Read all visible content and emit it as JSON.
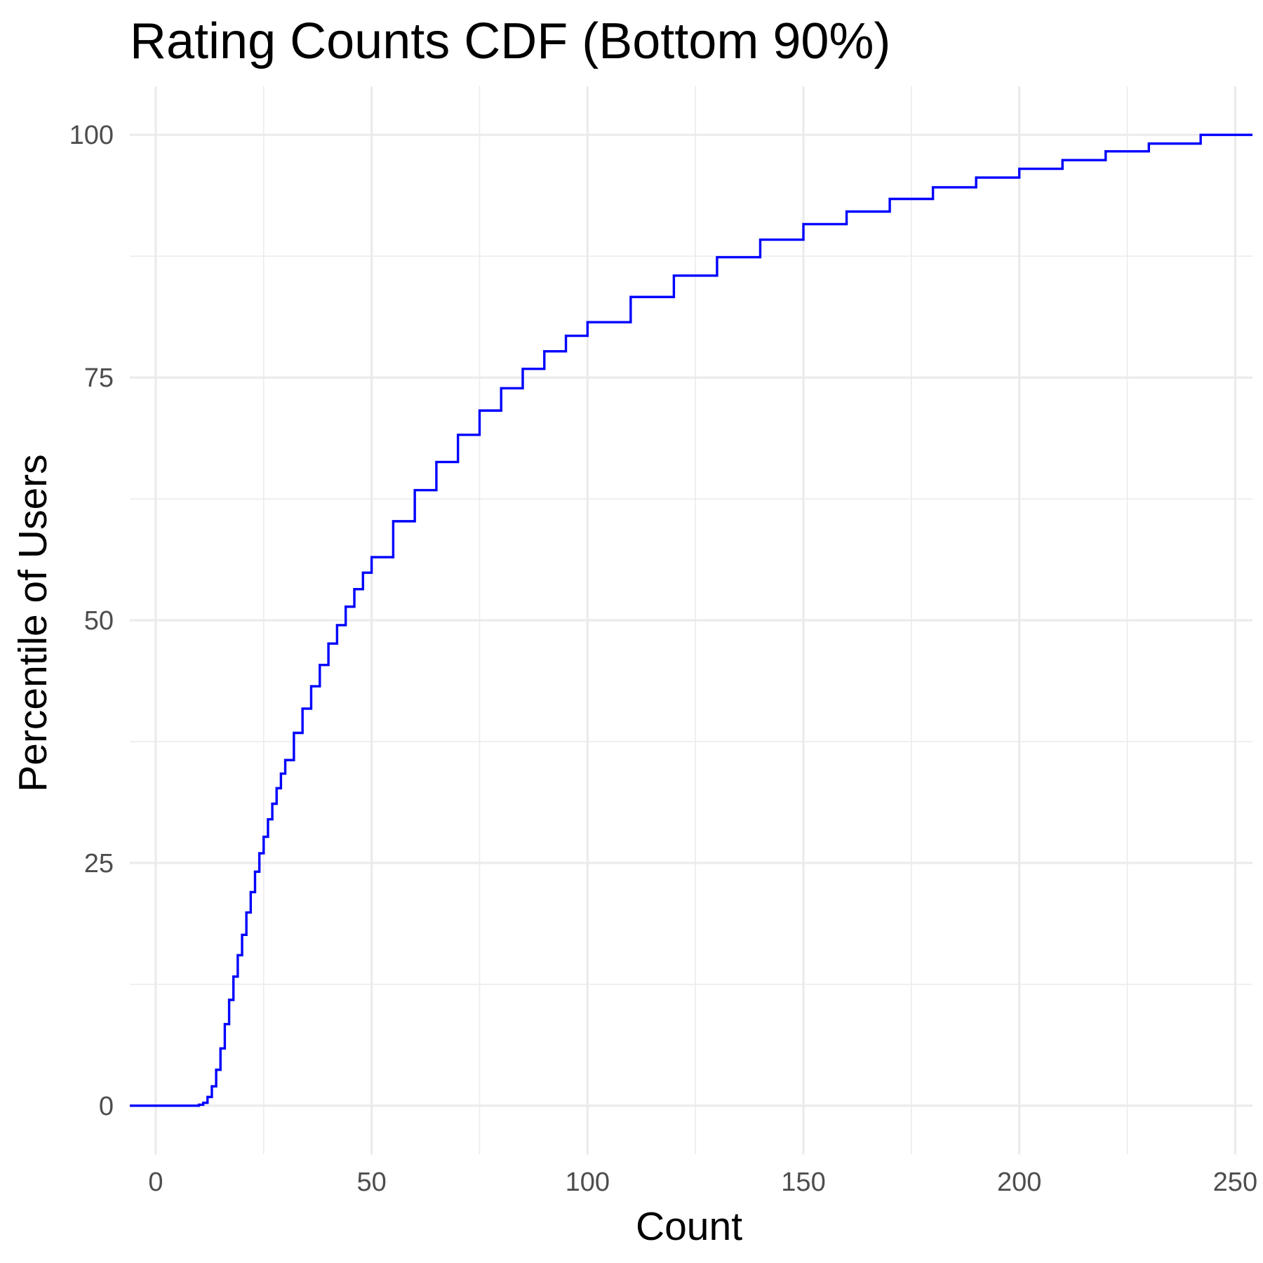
{
  "chart_data": {
    "type": "line",
    "step": true,
    "title": "Rating Counts CDF (Bottom 90%)",
    "xlabel": "Count",
    "ylabel": "Percentile of Users",
    "xlim": [
      -6,
      254
    ],
    "ylim": [
      -5,
      105
    ],
    "x_ticks": [
      0,
      50,
      100,
      150,
      200,
      250
    ],
    "y_ticks": [
      0,
      25,
      50,
      75,
      100
    ],
    "x_tick_labels": [
      "0",
      "50",
      "100",
      "150",
      "200",
      "250"
    ],
    "y_tick_labels": [
      "0",
      "25",
      "50",
      "75",
      "100"
    ],
    "grid": true,
    "legend": "none",
    "line_color": "#0000ff",
    "grid_color": "#ebebeb",
    "series": [
      {
        "x": [
          -6,
          8,
          10,
          11,
          12,
          13,
          14,
          15,
          16,
          17,
          18,
          19,
          20,
          21,
          22,
          23,
          24,
          25,
          26,
          27,
          28,
          29,
          30,
          32,
          34,
          36,
          38,
          40,
          42,
          44,
          46,
          48,
          50,
          55,
          60,
          65,
          70,
          75,
          80,
          85,
          90,
          95,
          100,
          110,
          120,
          130,
          140,
          150,
          160,
          170,
          180,
          190,
          200,
          210,
          220,
          230,
          242,
          254
        ],
        "y": [
          0,
          0,
          0.1,
          0.3,
          0.9,
          2.0,
          3.7,
          5.9,
          8.4,
          10.9,
          13.3,
          15.5,
          17.6,
          19.9,
          22.0,
          24.1,
          26.0,
          27.7,
          29.5,
          31.1,
          32.7,
          34.2,
          35.6,
          38.4,
          40.9,
          43.2,
          45.4,
          47.6,
          49.5,
          51.4,
          53.2,
          54.9,
          56.5,
          60.2,
          63.4,
          66.3,
          69.1,
          71.6,
          73.9,
          75.9,
          77.7,
          79.3,
          80.7,
          83.3,
          85.5,
          87.4,
          89.2,
          90.8,
          92.1,
          93.4,
          94.6,
          95.6,
          96.5,
          97.4,
          98.3,
          99.1,
          100,
          100
        ]
      }
    ]
  }
}
